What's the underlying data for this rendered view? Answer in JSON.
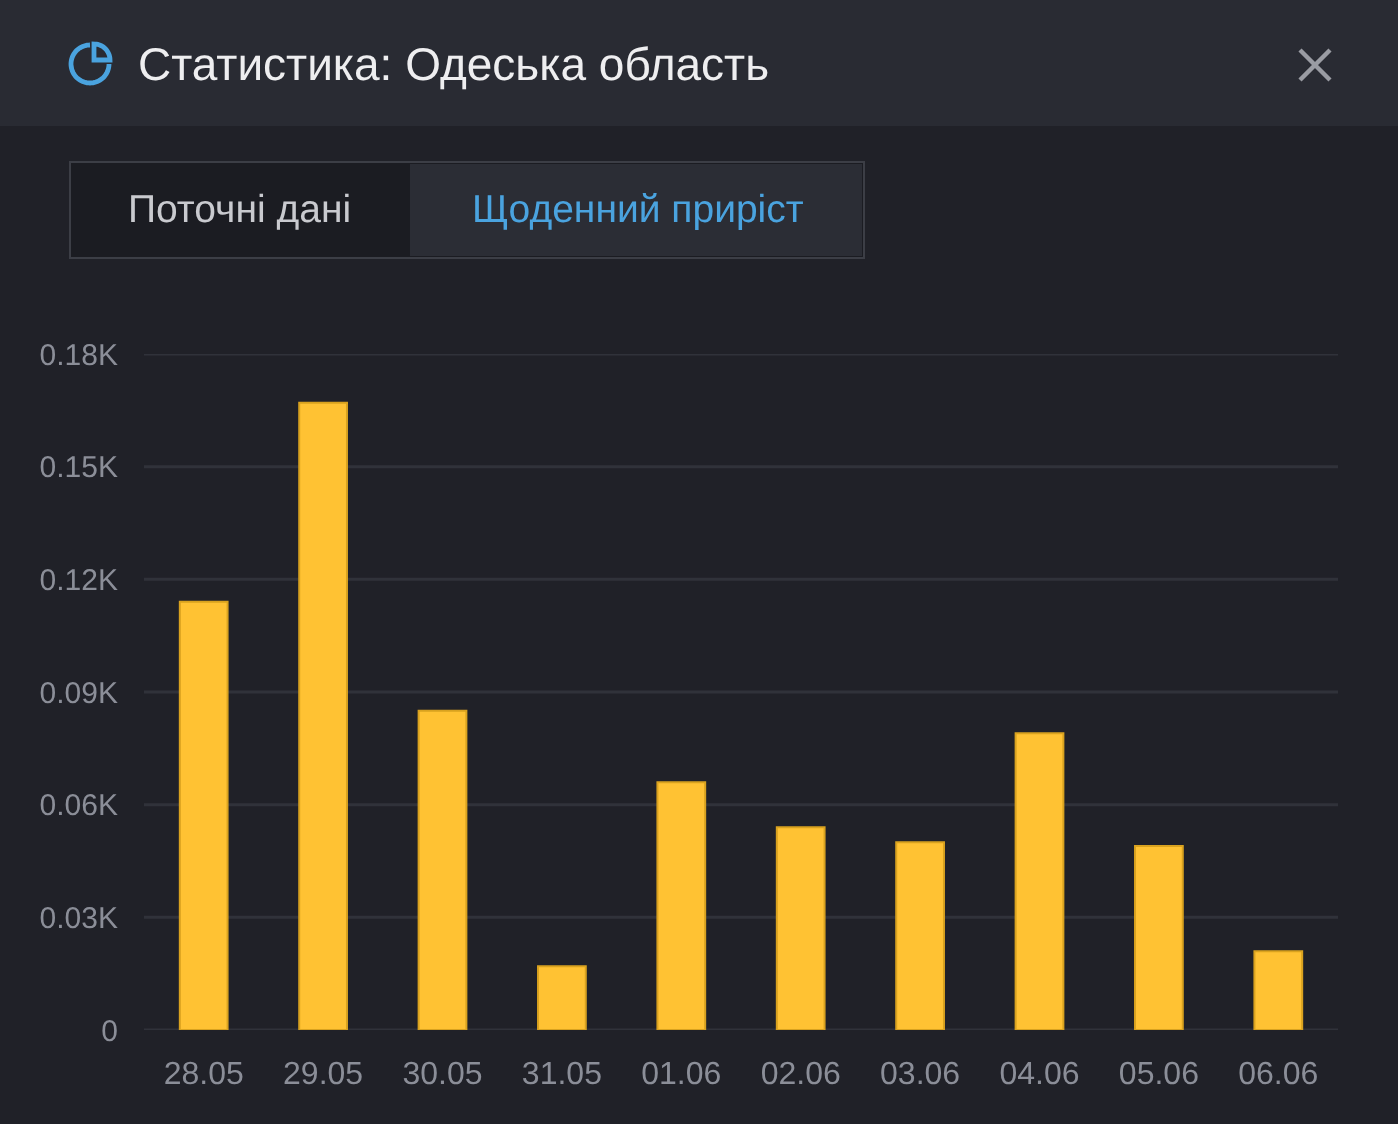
{
  "chart_data": {
    "type": "bar",
    "title": "Статистика: Одеська область",
    "annotations": [
      "Поточні дані",
      "Щоденний приріст"
    ],
    "categories": [
      "28.05",
      "29.05",
      "30.05",
      "31.05",
      "01.06",
      "02.06",
      "03.06",
      "04.06",
      "05.06",
      "06.06"
    ],
    "values": [
      114,
      167,
      85,
      17,
      66,
      54,
      50,
      79,
      49,
      21
    ],
    "color": "#ffc233",
    "ylim": [
      0,
      180
    ],
    "yticks": [
      0,
      {
        "value": 30,
        "label": "0.03K"
      },
      {
        "value": 60,
        "label": "0.06K"
      },
      {
        "value": 90,
        "label": "0.09K"
      },
      {
        "value": 120,
        "label": "0.12K"
      },
      {
        "value": 150,
        "label": "0.15K"
      },
      {
        "value": 180,
        "label": "0.18K"
      }
    ],
    "grid": "y"
  }
}
